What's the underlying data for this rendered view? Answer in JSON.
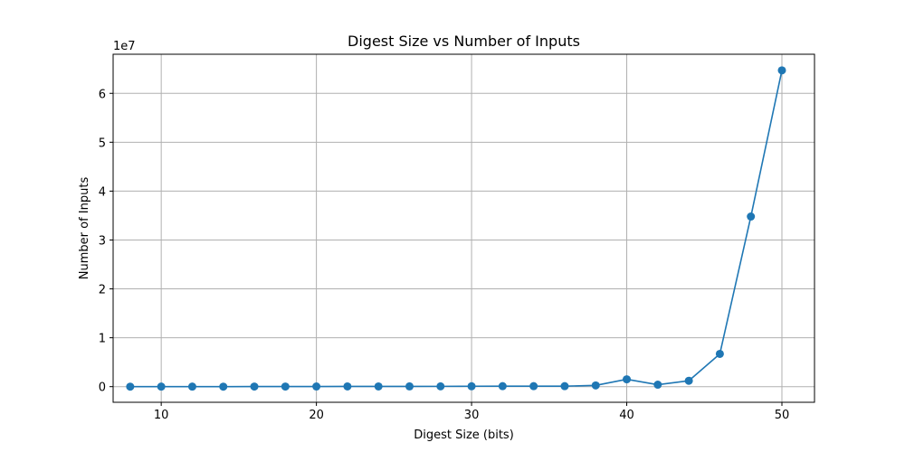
{
  "chart_data": {
    "type": "line",
    "title": "Digest Size vs Number of Inputs",
    "xlabel": "Digest Size (bits)",
    "ylabel": "Number of Inputs",
    "y_offset_label": "1e7",
    "grid": true,
    "xlim": [
      6.9,
      52.1
    ],
    "ylim": [
      -3.2,
      68.0
    ],
    "xticks": [
      10,
      20,
      30,
      40,
      50
    ],
    "xtick_labels": [
      "10",
      "20",
      "30",
      "40",
      "50"
    ],
    "yticks": [
      0,
      10,
      20,
      30,
      40,
      50,
      60
    ],
    "ytick_labels": [
      "0",
      "1",
      "2",
      "3",
      "4",
      "5",
      "6"
    ],
    "y_scale_factor": 10000000,
    "series": [
      {
        "color": "#1f77b4",
        "marker": "circle",
        "x": [
          8,
          10,
          12,
          14,
          16,
          18,
          20,
          22,
          24,
          26,
          28,
          30,
          32,
          34,
          36,
          38,
          40,
          42,
          44,
          46,
          48,
          50
        ],
        "y": [
          0.0,
          0.01,
          0.01,
          0.0,
          0.02,
          0.02,
          0.03,
          0.04,
          0.04,
          0.05,
          0.06,
          0.08,
          0.1,
          0.1,
          0.1,
          0.25,
          1.5,
          0.4,
          1.2,
          6.7,
          34.8,
          64.7
        ]
      }
    ]
  }
}
